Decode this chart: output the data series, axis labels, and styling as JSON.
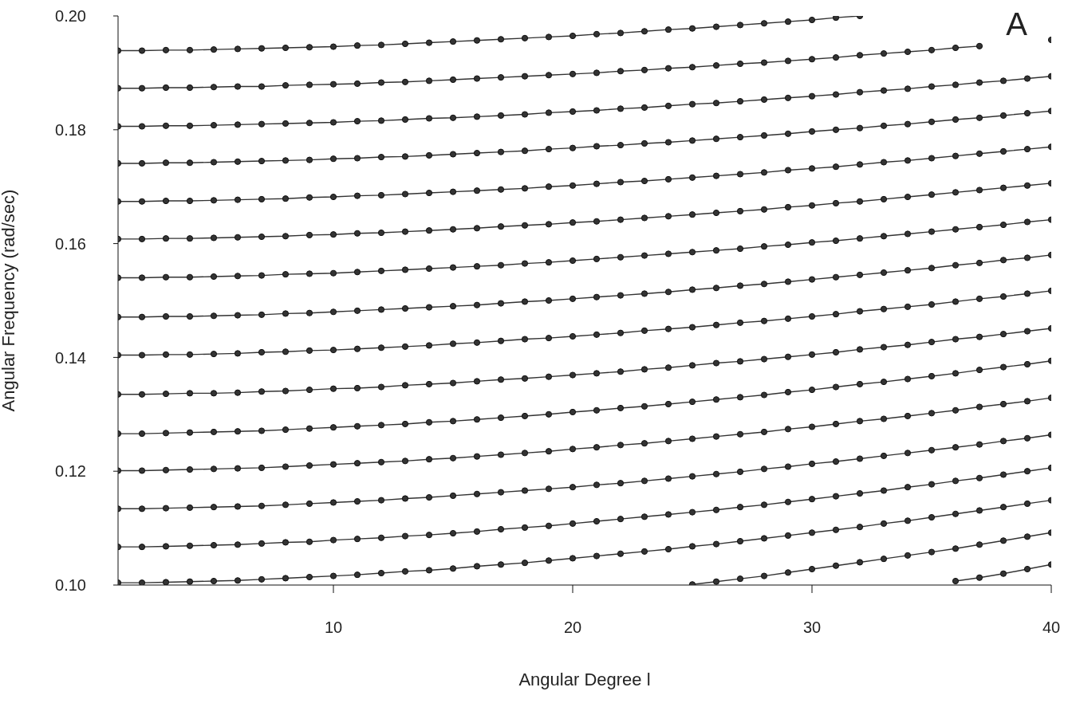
{
  "chart_data": {
    "type": "line",
    "xlabel": "Angular Degree l",
    "ylabel": "Angular Frequency (rad/sec)",
    "annotations": [
      "A"
    ],
    "marker": "circle",
    "line_style": "solid",
    "xlim": [
      1,
      40
    ],
    "xticks": [
      10,
      20,
      30,
      40
    ],
    "ylim": [
      0.1,
      0.2
    ],
    "yticks": [
      {
        "value": 0.1,
        "label": "0.10"
      },
      {
        "value": 0.12,
        "label": "0.12"
      },
      {
        "value": 0.14,
        "label": "0.14"
      },
      {
        "value": 0.16,
        "label": "0.16"
      },
      {
        "value": 0.18,
        "label": "0.18"
      },
      {
        "value": 0.2,
        "label": "0.20"
      }
    ],
    "x": [
      1,
      2,
      3,
      4,
      5,
      6,
      7,
      8,
      9,
      10,
      11,
      12,
      13,
      14,
      15,
      16,
      17,
      18,
      19,
      20,
      21,
      22,
      23,
      24,
      25,
      26,
      27,
      28,
      29,
      30,
      31,
      32,
      33,
      34,
      35,
      36,
      37,
      38,
      39,
      40
    ],
    "series": [
      {
        "color": "#333333",
        "x": [
          1,
          2,
          3,
          4,
          5,
          6,
          7,
          8,
          9,
          10,
          11,
          12,
          13,
          14,
          15,
          16,
          17,
          18,
          19,
          20,
          21,
          22,
          23,
          24,
          25,
          26,
          27,
          28,
          29,
          30,
          31,
          32
        ],
        "values": [
          0.1939,
          0.1939,
          0.194,
          0.194,
          0.1941,
          0.1942,
          0.1943,
          0.1944,
          0.1945,
          0.1946,
          0.1948,
          0.1949,
          0.1951,
          0.1953,
          0.1955,
          0.1957,
          0.1959,
          0.1961,
          0.1963,
          0.1965,
          0.1968,
          0.197,
          0.1973,
          0.1976,
          0.1978,
          0.1981,
          0.1984,
          0.1987,
          0.199,
          0.1993,
          0.1997,
          0.2
        ]
      },
      {
        "color": "#333333",
        "values": [
          0.1873,
          0.1873,
          0.1874,
          0.1874,
          0.1875,
          0.1876,
          0.1876,
          0.1878,
          0.1879,
          0.188,
          0.1881,
          0.1883,
          0.1884,
          0.1886,
          0.1888,
          0.189,
          0.1892,
          0.1894,
          0.1896,
          0.1898,
          0.19,
          0.1903,
          0.1905,
          0.1908,
          0.191,
          0.1913,
          0.1916,
          0.1918,
          0.1921,
          0.1924,
          0.1927,
          0.1931,
          0.1934,
          0.1937,
          0.194,
          0.1944,
          0.1947,
          null,
          null,
          0.1958
        ]
      },
      {
        "color": "#333333",
        "values": [
          0.1806,
          0.1806,
          0.1807,
          0.1807,
          0.1808,
          0.1809,
          0.181,
          0.1811,
          0.1812,
          0.1813,
          0.1815,
          0.1816,
          0.1818,
          0.182,
          0.1821,
          0.1823,
          0.1825,
          0.1827,
          0.183,
          0.1832,
          0.1834,
          0.1837,
          0.1839,
          0.1842,
          0.1845,
          0.1847,
          0.185,
          0.1853,
          0.1856,
          0.1859,
          0.1862,
          0.1866,
          0.1869,
          0.1872,
          0.1876,
          0.1879,
          0.1883,
          0.1886,
          0.189,
          0.1894
        ]
      },
      {
        "color": "#333333",
        "values": [
          0.1741,
          0.1741,
          0.1742,
          0.1742,
          0.1743,
          0.1744,
          0.1745,
          0.1746,
          0.1747,
          0.1749,
          0.175,
          0.1752,
          0.1753,
          0.1755,
          0.1757,
          0.1759,
          0.1761,
          0.1763,
          0.1766,
          0.1768,
          0.1771,
          0.1773,
          0.1776,
          0.1778,
          0.1781,
          0.1784,
          0.1787,
          0.179,
          0.1793,
          0.1797,
          0.18,
          0.1803,
          0.1807,
          0.181,
          0.1814,
          0.1818,
          0.1821,
          0.1825,
          0.1829,
          0.1833
        ]
      },
      {
        "color": "#333333",
        "values": [
          0.1674,
          0.1674,
          0.1675,
          0.1675,
          0.1676,
          0.1677,
          0.1678,
          0.1679,
          0.1681,
          0.1682,
          0.1684,
          0.1685,
          0.1687,
          0.1689,
          0.1691,
          0.1693,
          0.1695,
          0.1697,
          0.17,
          0.1702,
          0.1705,
          0.1708,
          0.171,
          0.1713,
          0.1716,
          0.1719,
          0.1722,
          0.1725,
          0.1729,
          0.1732,
          0.1735,
          0.1739,
          0.1743,
          0.1746,
          0.175,
          0.1754,
          0.1758,
          0.1762,
          0.1766,
          0.177
        ]
      },
      {
        "color": "#333333",
        "values": [
          0.1608,
          0.1608,
          0.1609,
          0.1609,
          0.161,
          0.1611,
          0.1612,
          0.1613,
          0.1615,
          0.1616,
          0.1618,
          0.1619,
          0.1621,
          0.1623,
          0.1625,
          0.1627,
          0.163,
          0.1632,
          0.1634,
          0.1637,
          0.1639,
          0.1642,
          0.1645,
          0.1648,
          0.1651,
          0.1654,
          0.1657,
          0.166,
          0.1664,
          0.1667,
          0.1671,
          0.1674,
          0.1678,
          0.1682,
          0.1686,
          0.169,
          0.1694,
          0.1698,
          0.1702,
          0.1706
        ]
      },
      {
        "color": "#333333",
        "values": [
          0.154,
          0.154,
          0.1541,
          0.1541,
          0.1542,
          0.1543,
          0.1544,
          0.1546,
          0.1547,
          0.1548,
          0.155,
          0.1552,
          0.1554,
          0.1556,
          0.1558,
          0.156,
          0.1562,
          0.1565,
          0.1567,
          0.157,
          0.1573,
          0.1576,
          0.1579,
          0.1582,
          0.1585,
          0.1588,
          0.1591,
          0.1595,
          0.1598,
          0.1602,
          0.1605,
          0.1609,
          0.1613,
          0.1617,
          0.1621,
          0.1625,
          0.1629,
          0.1633,
          0.1638,
          0.1642
        ]
      },
      {
        "color": "#333333",
        "values": [
          0.1471,
          0.1471,
          0.1472,
          0.1472,
          0.1473,
          0.1474,
          0.1475,
          0.1477,
          0.1478,
          0.148,
          0.1482,
          0.1484,
          0.1486,
          0.1488,
          0.149,
          0.1492,
          0.1495,
          0.1498,
          0.15,
          0.1503,
          0.1506,
          0.1509,
          0.1512,
          0.1515,
          0.1519,
          0.1522,
          0.1526,
          0.1529,
          0.1533,
          0.1537,
          0.1541,
          0.1545,
          0.1549,
          0.1553,
          0.1557,
          0.1562,
          0.1566,
          0.1571,
          0.1575,
          0.158
        ]
      },
      {
        "color": "#333333",
        "values": [
          0.1404,
          0.1404,
          0.1405,
          0.1405,
          0.1406,
          0.1407,
          0.1409,
          0.141,
          0.1412,
          0.1413,
          0.1415,
          0.1417,
          0.1419,
          0.1421,
          0.1424,
          0.1426,
          0.1429,
          0.1432,
          0.1434,
          0.1437,
          0.144,
          0.1443,
          0.1447,
          0.145,
          0.1453,
          0.1457,
          0.1461,
          0.1464,
          0.1468,
          0.1472,
          0.1476,
          0.1481,
          0.1485,
          0.1489,
          0.1493,
          0.1498,
          0.1503,
          0.1507,
          0.1512,
          0.1517
        ]
      },
      {
        "color": "#333333",
        "values": [
          0.1335,
          0.1335,
          0.1336,
          0.1337,
          0.1337,
          0.1338,
          0.134,
          0.1341,
          0.1343,
          0.1345,
          0.1346,
          0.1348,
          0.1351,
          0.1353,
          0.1355,
          0.1358,
          0.1361,
          0.1363,
          0.1366,
          0.1369,
          0.1372,
          0.1375,
          0.1379,
          0.1382,
          0.1386,
          0.139,
          0.1393,
          0.1397,
          0.1401,
          0.1405,
          0.1409,
          0.1414,
          0.1418,
          0.1422,
          0.1427,
          0.1432,
          0.1436,
          0.1441,
          0.1446,
          0.1451
        ]
      },
      {
        "color": "#333333",
        "values": [
          0.1266,
          0.1266,
          0.1267,
          0.1268,
          0.1269,
          0.127,
          0.1271,
          0.1273,
          0.1275,
          0.1277,
          0.1279,
          0.1281,
          0.1283,
          0.1286,
          0.1288,
          0.1291,
          0.1294,
          0.1297,
          0.13,
          0.1304,
          0.1307,
          0.1311,
          0.1314,
          0.1318,
          0.1322,
          0.1326,
          0.133,
          0.1334,
          0.1339,
          0.1343,
          0.1348,
          0.1353,
          0.1357,
          0.1362,
          0.1367,
          0.1372,
          0.1378,
          0.1383,
          0.1388,
          0.1394
        ]
      },
      {
        "color": "#333333",
        "values": [
          0.1201,
          0.1201,
          0.1202,
          0.1203,
          0.1204,
          0.1205,
          0.1206,
          0.1208,
          0.121,
          0.1212,
          0.1214,
          0.1216,
          0.1218,
          0.1221,
          0.1223,
          0.1226,
          0.1229,
          0.1232,
          0.1235,
          0.1239,
          0.1242,
          0.1246,
          0.1249,
          0.1253,
          0.1257,
          0.1261,
          0.1265,
          0.1269,
          0.1274,
          0.1278,
          0.1283,
          0.1288,
          0.1292,
          0.1297,
          0.1302,
          0.1307,
          0.1313,
          0.1318,
          0.1323,
          0.1329
        ]
      },
      {
        "color": "#333333",
        "values": [
          0.1134,
          0.1134,
          0.1135,
          0.1136,
          0.1137,
          0.1138,
          0.1139,
          0.1141,
          0.1143,
          0.1145,
          0.1147,
          0.1149,
          0.1152,
          0.1154,
          0.1157,
          0.116,
          0.1163,
          0.1166,
          0.1169,
          0.1172,
          0.1176,
          0.1179,
          0.1183,
          0.1187,
          0.1191,
          0.1195,
          0.1199,
          0.1204,
          0.1208,
          0.1213,
          0.1217,
          0.1222,
          0.1227,
          0.1232,
          0.1237,
          0.1242,
          0.1247,
          0.1253,
          0.1258,
          0.1264
        ]
      },
      {
        "color": "#333333",
        "values": [
          0.1067,
          0.1067,
          0.1068,
          0.1069,
          0.107,
          0.1071,
          0.1073,
          0.1075,
          0.1076,
          0.1079,
          0.1081,
          0.1083,
          0.1086,
          0.1088,
          0.1091,
          0.1094,
          0.1098,
          0.1101,
          0.1104,
          0.1108,
          0.1112,
          0.1116,
          0.112,
          0.1124,
          0.1128,
          0.1132,
          0.1137,
          0.1141,
          0.1146,
          0.1151,
          0.1156,
          0.1161,
          0.1166,
          0.1172,
          0.1177,
          0.1183,
          0.1188,
          0.1194,
          0.12,
          0.1206
        ]
      },
      {
        "color": "#333333",
        "values": [
          0.1004,
          0.1004,
          0.1005,
          0.1006,
          0.1007,
          0.1008,
          0.101,
          0.1012,
          0.1014,
          0.1016,
          0.1018,
          0.1021,
          0.1024,
          0.1026,
          0.1029,
          0.1033,
          0.1036,
          0.1039,
          0.1043,
          0.1047,
          0.1051,
          0.1055,
          0.1059,
          0.1063,
          0.1068,
          0.1072,
          0.1077,
          0.1082,
          0.1087,
          0.1092,
          0.1097,
          0.1102,
          0.1108,
          0.1113,
          0.1119,
          0.1125,
          0.1131,
          0.1137,
          0.1143,
          0.1149
        ]
      },
      {
        "color": "#333333",
        "x": [
          25,
          26,
          27,
          28,
          29,
          30,
          31,
          32,
          33,
          34,
          35,
          36,
          37,
          38,
          39,
          40
        ],
        "values": [
          0.1001,
          0.1006,
          0.1011,
          0.1016,
          0.1022,
          0.1028,
          0.1034,
          0.104,
          0.1046,
          0.1052,
          0.1058,
          0.1064,
          0.1071,
          0.1078,
          0.1085,
          0.1092
        ]
      },
      {
        "color": "#333333",
        "x": [
          36,
          37,
          38,
          39,
          40
        ],
        "values": [
          0.1007,
          0.1013,
          0.102,
          0.1028,
          0.1036
        ]
      }
    ]
  }
}
